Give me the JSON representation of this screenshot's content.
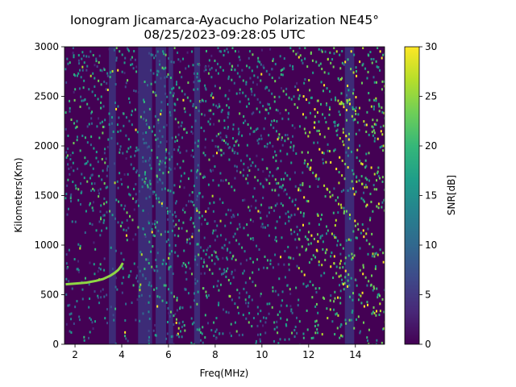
{
  "chart_data": {
    "type": "heatmap",
    "title_lines": [
      "Ionogram Jicamarca-Ayacucho Polarization NE45°",
      "08/25/2023-09:28:05 UTC"
    ],
    "xlabel": "Freq(MHz)",
    "ylabel": "Kilometers(Km)",
    "xlim": [
      1.55,
      15.25
    ],
    "ylim": [
      0,
      3000
    ],
    "x_ticks": [
      2,
      4,
      6,
      8,
      10,
      12,
      14
    ],
    "y_ticks": [
      0,
      500,
      1000,
      1500,
      2000,
      2500,
      3000
    ],
    "colorbar": {
      "label": "SNR[dB]",
      "range": [
        0,
        30
      ],
      "ticks": [
        0,
        5,
        10,
        15,
        20,
        25,
        30
      ],
      "colormap": "viridis"
    },
    "features": {
      "bright_bands_mhz": [
        [
          3.45,
          3.75
        ],
        [
          4.7,
          5.3
        ],
        [
          5.45,
          5.9
        ],
        [
          6.0,
          6.2
        ],
        [
          7.1,
          7.35
        ],
        [
          13.55,
          13.95
        ]
      ],
      "echo_trace": {
        "freq_mhz": [
          1.6,
          2.0,
          2.5,
          2.9,
          3.2,
          3.5,
          3.7,
          3.85,
          3.95,
          4.05
        ],
        "range_km": [
          605,
          612,
          622,
          640,
          658,
          690,
          720,
          750,
          780,
          820
        ]
      }
    }
  },
  "colors": {
    "background": "#440154",
    "band": "#3b3a83",
    "trace": "#8fd744"
  }
}
